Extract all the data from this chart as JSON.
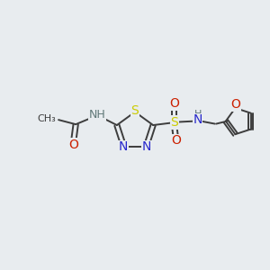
{
  "background_color": "#e8ecef",
  "bond_color": "#3d3d3d",
  "colors": {
    "N": "#2828cc",
    "S": "#cccc00",
    "O": "#cc2000",
    "C": "#3d3d3d",
    "H": "#607878"
  },
  "figsize": [
    3.0,
    3.0
  ],
  "dpi": 100
}
